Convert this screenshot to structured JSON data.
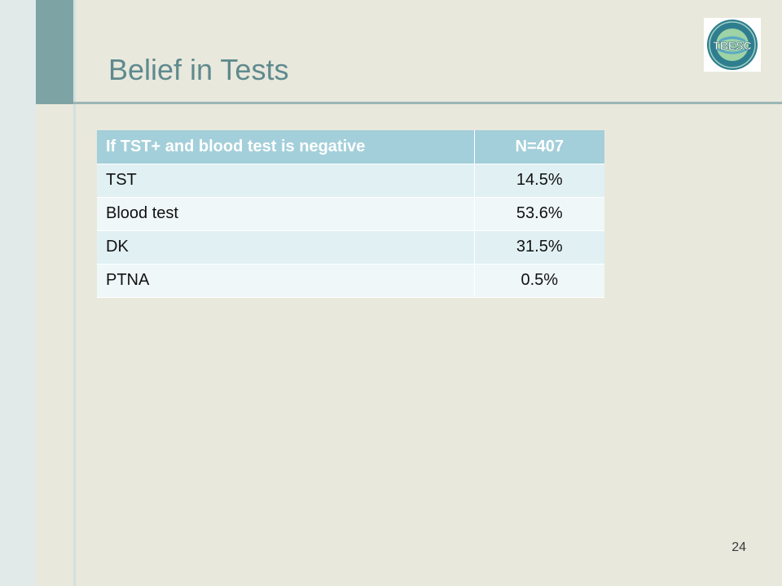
{
  "slide": {
    "title": "Belief in Tests",
    "page_number": "24",
    "logo": {
      "icon": "tbesc-seal-icon",
      "text": "TBESC"
    }
  },
  "table": {
    "headers": [
      "If TST+ and blood test is negative",
      "N=407"
    ],
    "rows": [
      {
        "label": "TST",
        "value": "14.5%"
      },
      {
        "label": "Blood test",
        "value": "53.6%"
      },
      {
        "label": "DK",
        "value": "31.5%"
      },
      {
        "label": "PTNA",
        "value": "0.5%"
      }
    ]
  },
  "colors": {
    "background": "#e9e8dd",
    "title": "#5e8a8d",
    "header_fill": "#a3cfda",
    "row_fill_a": "#e1f0f3",
    "row_fill_b": "#f0f7f8",
    "accent_stripe": "#7ea3a5"
  }
}
